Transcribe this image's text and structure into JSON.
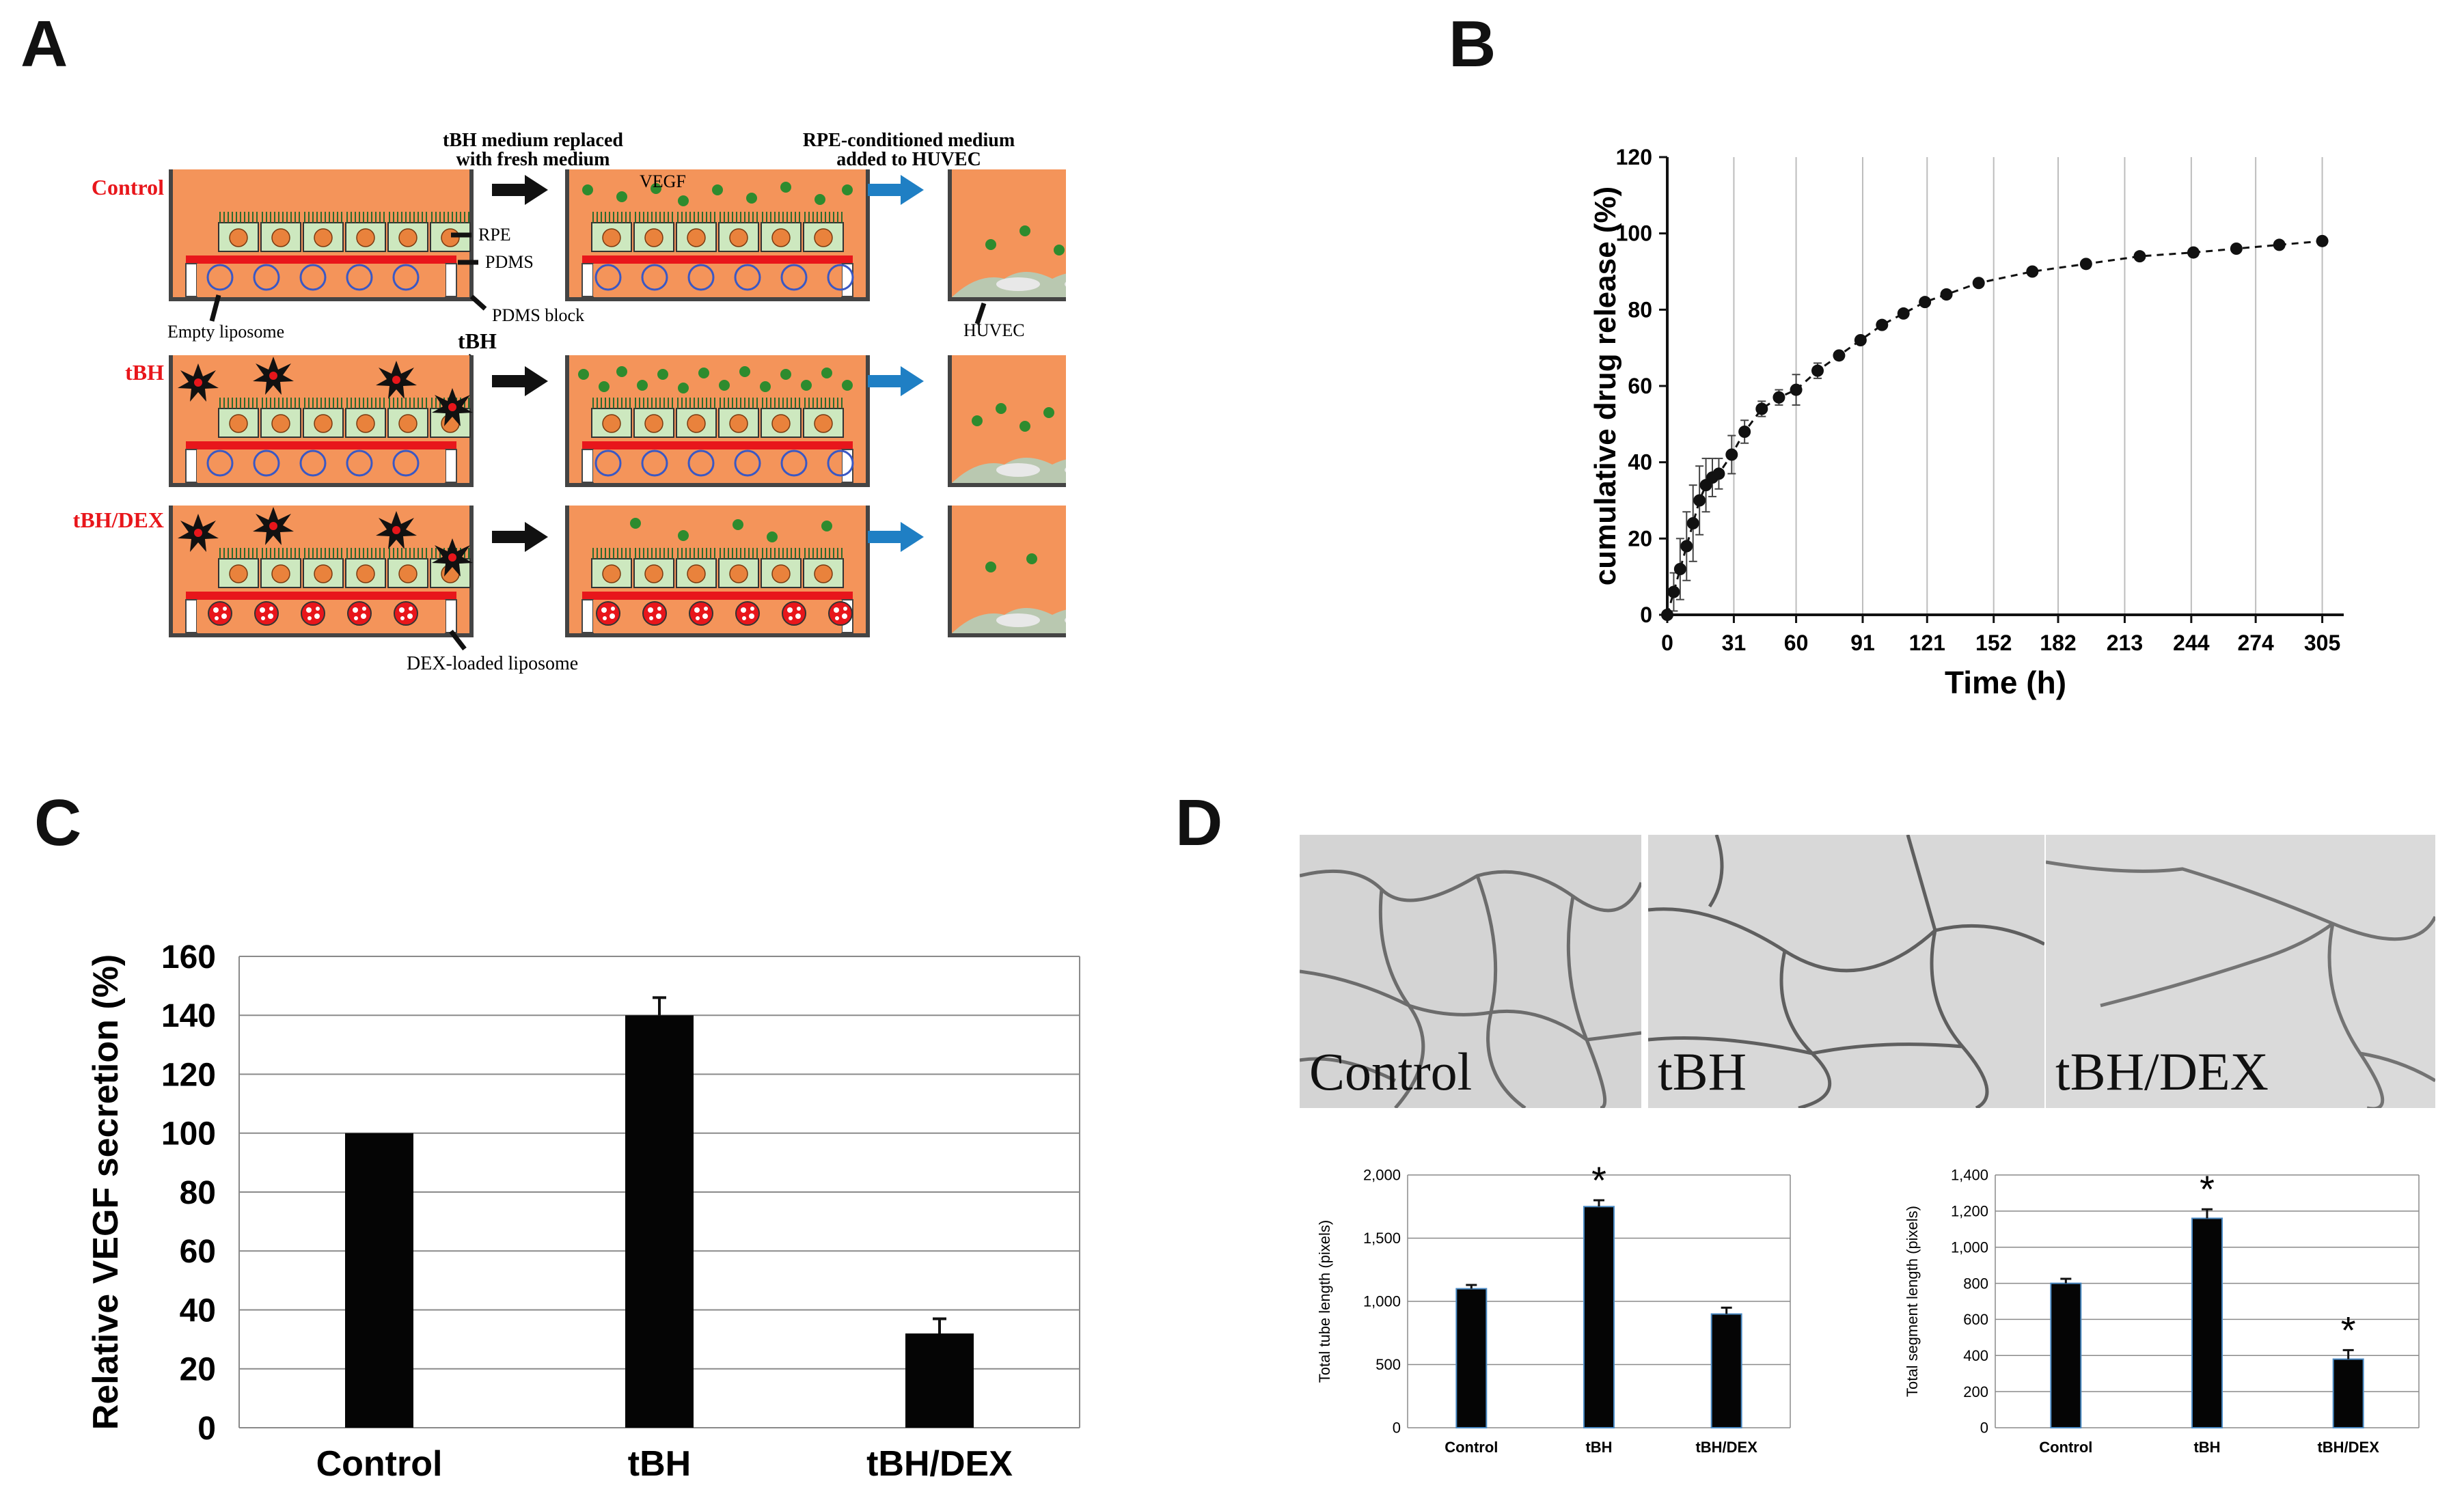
{
  "panels": {
    "a": "A",
    "b": "B",
    "c": "C",
    "d": "D"
  },
  "schematic": {
    "rows": [
      "Control",
      "tBH",
      "tBH/DEX"
    ],
    "step1_caption": [
      "tBH medium replaced",
      "with fresh medium"
    ],
    "step2_caption": [
      "RPE-conditioned medium",
      "added to HUVEC"
    ],
    "labels": {
      "vegf": "VEGF",
      "rpe": "RPE",
      "pdms": "PDMS",
      "pdms_block": "PDMS block",
      "empty_liposome": "Empty liposome",
      "huvec": "HUVEC",
      "tbh": "tBH",
      "dex_liposome": "DEX-loaded liposome"
    },
    "colors": {
      "medium": "#f4945a",
      "rpe_cell": "#cde8bf",
      "membrane": "#e8161b",
      "vegf": "#2e8b2e",
      "arrow_blue": "#1f7fc4",
      "row_label": "#e8161b"
    }
  },
  "microscopy": {
    "labels": [
      "Control",
      "tBH",
      "tBH/DEX"
    ]
  },
  "chart_data": [
    {
      "id": "B",
      "type": "scatter",
      "title": "",
      "xlabel": "Time (h)",
      "ylabel": "cumulative drug release (%)",
      "xlim": [
        0,
        315
      ],
      "ylim": [
        0,
        120
      ],
      "xticks": [
        0,
        31,
        60,
        91,
        121,
        152,
        182,
        213,
        244,
        274,
        305
      ],
      "yticks": [
        0,
        20,
        40,
        60,
        80,
        100,
        120
      ],
      "vertical_gridlines": true,
      "line_style": "dashed",
      "x": [
        0,
        3,
        6,
        9,
        12,
        15,
        18,
        21,
        24,
        30,
        36,
        44,
        52,
        60,
        70,
        80,
        90,
        100,
        110,
        120,
        130,
        145,
        170,
        195,
        220,
        245,
        265,
        285,
        305
      ],
      "y": [
        0,
        6,
        12,
        18,
        24,
        30,
        34,
        36,
        37,
        42,
        48,
        54,
        57,
        59,
        64,
        68,
        72,
        76,
        79,
        82,
        84,
        87,
        90,
        92,
        94,
        95,
        96,
        97,
        98
      ],
      "errors": [
        0,
        5,
        8,
        9,
        10,
        9,
        7,
        5,
        4,
        5,
        3,
        2,
        2,
        4,
        2,
        1,
        1,
        1,
        1,
        1,
        1,
        1,
        1,
        1,
        1,
        1,
        1,
        1,
        1
      ]
    },
    {
      "id": "C",
      "type": "bar",
      "categories": [
        "Control",
        "tBH",
        "tBH/DEX"
      ],
      "values": [
        100,
        140,
        32
      ],
      "errors": [
        0,
        6,
        5
      ],
      "xlabel": "",
      "ylabel": "Relative VEGF secretion (%)",
      "ylim": [
        0,
        160
      ],
      "yticks": [
        "0",
        "20",
        "40",
        "60",
        "80",
        "100",
        "120",
        "140",
        "160"
      ]
    },
    {
      "id": "D1",
      "type": "bar",
      "categories": [
        "Control",
        "tBH",
        "tBH/DEX"
      ],
      "values": [
        1100,
        1750,
        900
      ],
      "errors": [
        30,
        50,
        50
      ],
      "significance": [
        "",
        "*",
        ""
      ],
      "ylabel": "Total tube length (pixels)",
      "ylim": [
        0,
        2000
      ],
      "yticks": [
        "0",
        "500",
        "1,000",
        "1,500",
        "2,000"
      ]
    },
    {
      "id": "D2",
      "type": "bar",
      "categories": [
        "Control",
        "tBH",
        "tBH/DEX"
      ],
      "values": [
        800,
        1160,
        380
      ],
      "errors": [
        25,
        50,
        50
      ],
      "significance": [
        "",
        "*",
        "*"
      ],
      "ylabel": "Total segment length (pixels)",
      "ylim": [
        0,
        1400
      ],
      "yticks": [
        "0",
        "200",
        "400",
        "600",
        "800",
        "1,000",
        "1,200",
        "1,400"
      ]
    }
  ]
}
